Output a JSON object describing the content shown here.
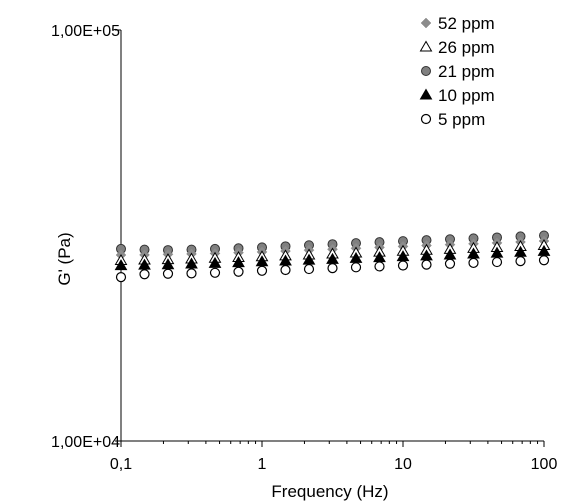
{
  "chart_data": {
    "type": "scatter",
    "title": "",
    "xlabel": "Frequency (Hz)",
    "ylabel": "G' (Pa)",
    "x_scale": "log",
    "y_scale": "log",
    "xlim": [
      0.1,
      100
    ],
    "ylim": [
      10000,
      100000
    ],
    "x_ticks": [
      "0,1",
      "1",
      "10",
      "100"
    ],
    "y_ticks": [
      "1,00E+04",
      "1,00E+05"
    ],
    "grid": false,
    "legend_position": "top-right",
    "x": [
      0.1,
      0.1468,
      0.2154,
      0.3162,
      0.4642,
      0.6813,
      1.0,
      1.4678,
      2.1544,
      3.1623,
      4.6416,
      6.8129,
      10.0,
      14.678,
      21.544,
      31.623,
      46.416,
      68.129,
      100.0
    ],
    "series": [
      {
        "name": "52 ppm",
        "marker": "diamond",
        "color": "#8c8c8c",
        "values": [
          28350,
          28370,
          28460,
          28520,
          28610,
          28720,
          28840,
          28980,
          29130,
          29270,
          29440,
          29590,
          29750,
          29900,
          30040,
          30190,
          30340,
          30500,
          30660
        ]
      },
      {
        "name": "26 ppm",
        "marker": "triangle-open",
        "color": "#000000",
        "values": [
          27490,
          27560,
          27630,
          27720,
          27840,
          27950,
          28080,
          28220,
          28360,
          28500,
          28660,
          28810,
          28960,
          29110,
          29260,
          29420,
          29570,
          29730,
          29890
        ]
      },
      {
        "name": "21 ppm",
        "marker": "circle-filled",
        "color": "#808080",
        "values": [
          29330,
          29220,
          29140,
          29220,
          29330,
          29440,
          29580,
          29760,
          29940,
          30120,
          30290,
          30460,
          30640,
          30810,
          30960,
          31120,
          31280,
          31460,
          31620
        ]
      },
      {
        "name": "10 ppm",
        "marker": "triangle-filled",
        "color": "#000000",
        "values": [
          26720,
          26780,
          26850,
          26950,
          27060,
          27170,
          27290,
          27410,
          27540,
          27670,
          27810,
          27940,
          28090,
          28220,
          28360,
          28510,
          28640,
          28790,
          28940
        ]
      },
      {
        "name": "5 ppm",
        "marker": "circle-open",
        "color": "#000000",
        "values": [
          25040,
          25450,
          25520,
          25580,
          25660,
          25810,
          25950,
          26070,
          26200,
          26340,
          26460,
          26590,
          26730,
          26860,
          26990,
          27120,
          27250,
          27390,
          27530
        ]
      }
    ]
  }
}
